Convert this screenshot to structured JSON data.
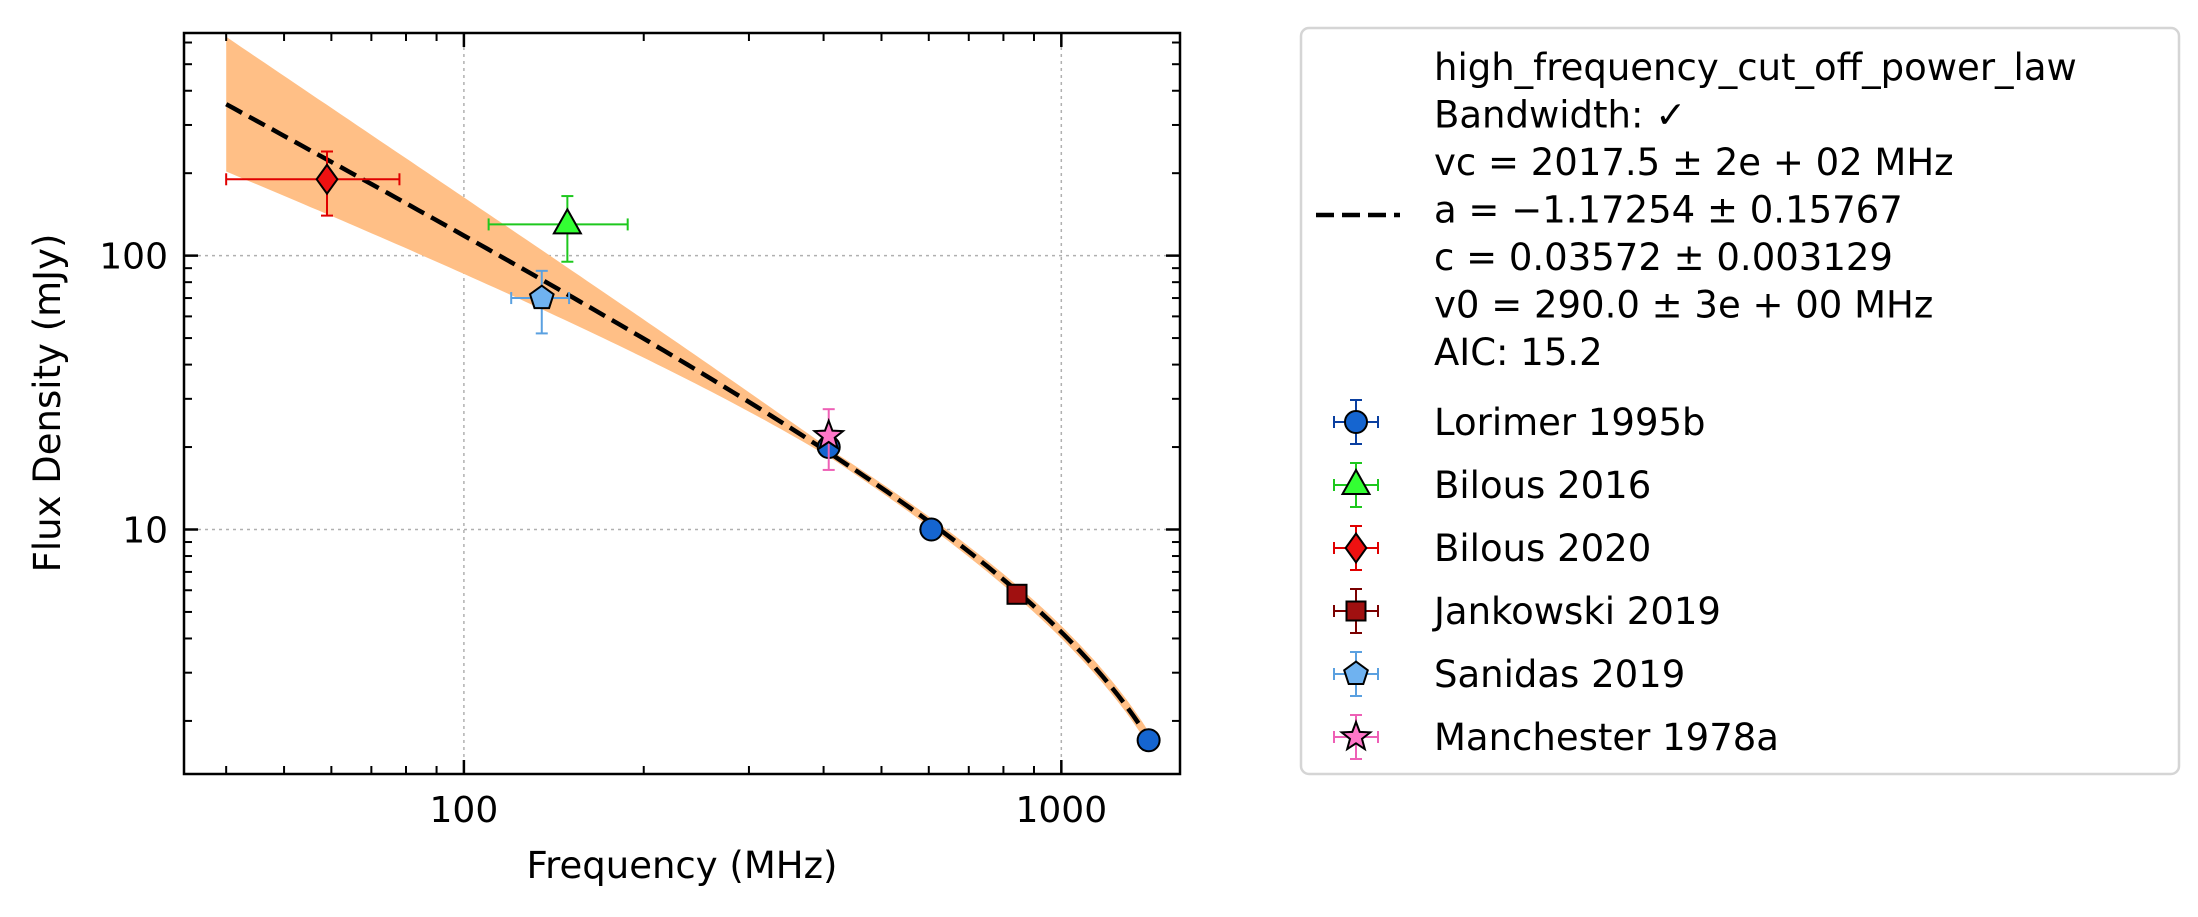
{
  "chart_data": {
    "type": "scatter",
    "xlabel": "Frequency (MHz)",
    "ylabel": "Flux Density (mJy)",
    "xscale": "log",
    "yscale": "log",
    "xlim": [
      34,
      1580
    ],
    "ylim": [
      1.28,
      650
    ],
    "grid": true,
    "legend_position": "outside-right",
    "x_ticks": [
      {
        "value": 100,
        "label": "100"
      },
      {
        "value": 1000,
        "label": "1000"
      }
    ],
    "y_ticks": [
      {
        "value": 10,
        "label": "10"
      },
      {
        "value": 100,
        "label": "100"
      }
    ],
    "fit": {
      "name": "high_frequency_cut_off_power_law",
      "legend_lines": [
        "high_frequency_cut_off_power_law",
        "Bandwidth: ✓",
        "vc = 2017.5 ± 2e + 02 MHz",
        "a = −1.17254 ± 0.15767",
        "c = 0.03572 ± 0.003129",
        "v0 = 290.0 ± 3e + 00 MHz",
        "AIC: 15.2"
      ],
      "vc": 2017.5,
      "a": -1.17254,
      "c": 0.03572,
      "v0": 290.0,
      "x_range": [
        40,
        1400
      ],
      "line_color": "#000000",
      "band_color": "#ffbf86"
    },
    "series": [
      {
        "name": "Lorimer 1995b",
        "marker": "circle",
        "color": "#1565d0",
        "edge": "#0a3fa0",
        "points": [
          {
            "x": 408,
            "y": 20,
            "xerr": [
              0,
              0
            ],
            "yerr": [
              18.5,
              21.5
            ]
          },
          {
            "x": 606,
            "y": 10,
            "xerr": [
              0,
              0
            ],
            "yerr": [
              9.6,
              10.4
            ]
          },
          {
            "x": 1400,
            "y": 1.7,
            "xerr": [
              0,
              0
            ],
            "yerr": [
              1.65,
              1.75
            ]
          }
        ]
      },
      {
        "name": "Bilous 2016",
        "marker": "triangle",
        "color": "#33ff33",
        "edge": "#1ec81e",
        "points": [
          {
            "x": 149,
            "y": 130,
            "xerr": [
              110,
              188
            ],
            "yerr": [
              95,
              165
            ]
          }
        ]
      },
      {
        "name": "Bilous 2020",
        "marker": "diamond",
        "color": "#ee1111",
        "edge": "#e00000",
        "points": [
          {
            "x": 59,
            "y": 190,
            "xerr": [
              40,
              78
            ],
            "yerr": [
              140,
              240
            ]
          }
        ]
      },
      {
        "name": "Jankowski 2019",
        "marker": "square",
        "color": "#a01010",
        "edge": "#7a0000",
        "points": [
          {
            "x": 843,
            "y": 5.8,
            "xerr": [
              0,
              0
            ],
            "yerr": [
              5.5,
              6.1
            ]
          }
        ]
      },
      {
        "name": "Sanidas 2019",
        "marker": "pentagon",
        "color": "#6fb2f0",
        "edge": "#5aa0e0",
        "points": [
          {
            "x": 135,
            "y": 70,
            "xerr": [
              120,
              150
            ],
            "yerr": [
              52,
              88
            ]
          }
        ]
      },
      {
        "name": "Manchester 1978a",
        "marker": "star",
        "color": "#ff77c8",
        "edge": "#ee60b6",
        "points": [
          {
            "x": 408,
            "y": 22,
            "xerr": [
              0,
              0
            ],
            "yerr": [
              16.5,
              27.5
            ]
          }
        ]
      }
    ]
  }
}
